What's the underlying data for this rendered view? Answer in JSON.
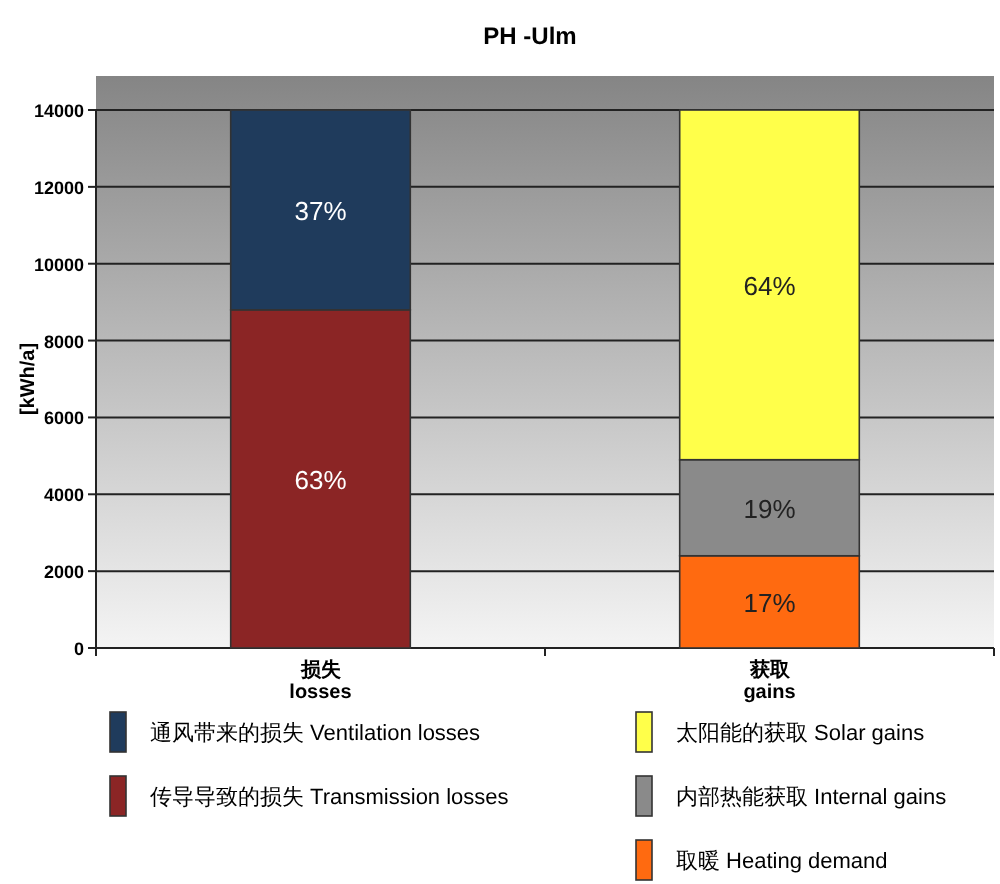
{
  "chart_data": {
    "type": "bar",
    "title": "PH -Ulm",
    "ylabel": "[kWh/a]",
    "categories": [
      "损失\nlosses",
      "获取\ngains"
    ],
    "stacked": true,
    "ylim": [
      0,
      14000
    ],
    "yticks": [
      0,
      2000,
      4000,
      6000,
      8000,
      10000,
      12000,
      14000
    ],
    "grid": "y",
    "legend": "bottom",
    "series": [
      {
        "name": "传导导致的损失 Transmission losses",
        "color": "#8b2525",
        "values": [
          8800,
          null
        ]
      },
      {
        "name": "通风带来的损失 Ventilation losses",
        "color": "#1f3b5c",
        "values": [
          5200,
          null
        ]
      },
      {
        "name": "取暖 Heating demand",
        "color": "#ff6a10",
        "values": [
          null,
          2400
        ]
      },
      {
        "name": "内部热能获取 Internal gains",
        "color": "#8a8a8a",
        "values": [
          null,
          2500
        ]
      },
      {
        "name": "太阳能的获取 Solar gains",
        "color": "#ffff4a",
        "values": [
          null,
          9100
        ]
      }
    ],
    "annotations": [
      "63%",
      "37%",
      "17%",
      "19%",
      "64%"
    ]
  }
}
